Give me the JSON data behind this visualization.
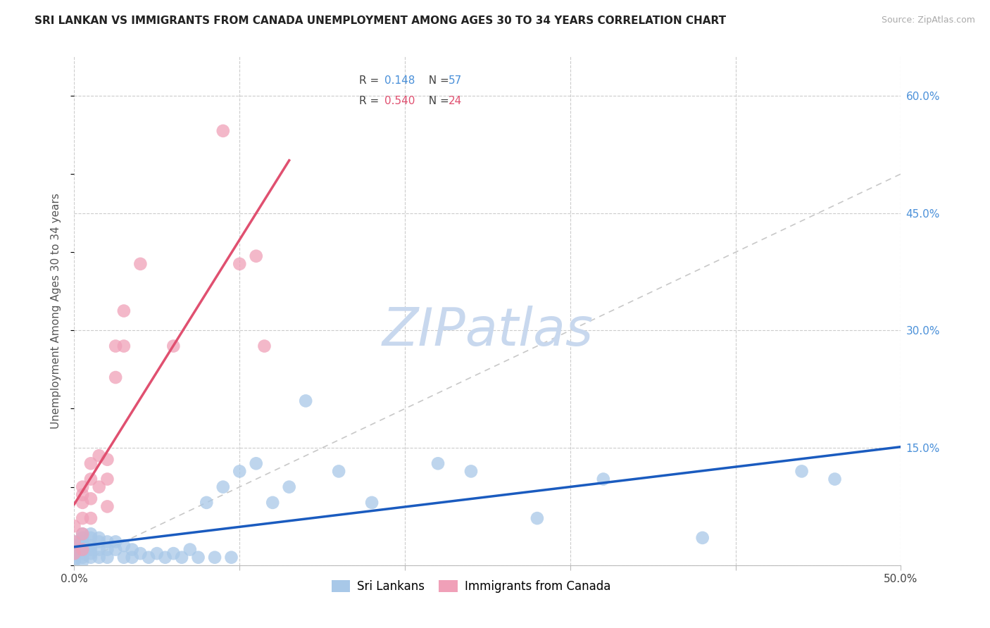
{
  "title": "SRI LANKAN VS IMMIGRANTS FROM CANADA UNEMPLOYMENT AMONG AGES 30 TO 34 YEARS CORRELATION CHART",
  "source": "Source: ZipAtlas.com",
  "ylabel": "Unemployment Among Ages 30 to 34 years",
  "xlim": [
    0.0,
    0.5
  ],
  "ylim": [
    0.0,
    0.65
  ],
  "xticks": [
    0.0,
    0.1,
    0.2,
    0.3,
    0.4,
    0.5
  ],
  "xticklabels": [
    "0.0%",
    "",
    "",
    "",
    "",
    "50.0%"
  ],
  "yticks": [
    0.0,
    0.15,
    0.3,
    0.45,
    0.6
  ],
  "yticklabels": [
    "",
    "15.0%",
    "30.0%",
    "45.0%",
    "60.0%"
  ],
  "blue_color": "#a8c8e8",
  "pink_color": "#f0a0b8",
  "blue_line_color": "#1a5bbf",
  "pink_line_color": "#e05070",
  "diag_line_color": "#c8c8c8",
  "watermark_color": "#c8d8ee",
  "sri_lankans_x": [
    0.0,
    0.0,
    0.0,
    0.0,
    0.0,
    0.0,
    0.005,
    0.005,
    0.005,
    0.005,
    0.005,
    0.005,
    0.005,
    0.005,
    0.01,
    0.01,
    0.01,
    0.01,
    0.01,
    0.01,
    0.015,
    0.015,
    0.015,
    0.015,
    0.02,
    0.02,
    0.02,
    0.025,
    0.025,
    0.03,
    0.03,
    0.035,
    0.035,
    0.04,
    0.045,
    0.05,
    0.055,
    0.06,
    0.065,
    0.07,
    0.075,
    0.08,
    0.085,
    0.09,
    0.095,
    0.1,
    0.11,
    0.12,
    0.13,
    0.14,
    0.16,
    0.18,
    0.22,
    0.24,
    0.28,
    0.32,
    0.38,
    0.44,
    0.46
  ],
  "sri_lankans_y": [
    0.03,
    0.025,
    0.02,
    0.015,
    0.01,
    0.005,
    0.04,
    0.035,
    0.03,
    0.025,
    0.02,
    0.015,
    0.01,
    0.005,
    0.04,
    0.035,
    0.025,
    0.02,
    0.015,
    0.01,
    0.035,
    0.03,
    0.02,
    0.01,
    0.03,
    0.02,
    0.01,
    0.03,
    0.02,
    0.025,
    0.01,
    0.02,
    0.01,
    0.015,
    0.01,
    0.015,
    0.01,
    0.015,
    0.01,
    0.02,
    0.01,
    0.08,
    0.01,
    0.1,
    0.01,
    0.12,
    0.13,
    0.08,
    0.1,
    0.21,
    0.12,
    0.08,
    0.13,
    0.12,
    0.06,
    0.11,
    0.035,
    0.12,
    0.11
  ],
  "immigrants_x": [
    0.0,
    0.0,
    0.0,
    0.005,
    0.005,
    0.005,
    0.005,
    0.005,
    0.005,
    0.01,
    0.01,
    0.01,
    0.01,
    0.015,
    0.015,
    0.02,
    0.02,
    0.02,
    0.025,
    0.025,
    0.03,
    0.03,
    0.04,
    0.06,
    0.09,
    0.1,
    0.11,
    0.115
  ],
  "immigrants_y": [
    0.05,
    0.03,
    0.015,
    0.1,
    0.09,
    0.08,
    0.06,
    0.04,
    0.02,
    0.13,
    0.11,
    0.085,
    0.06,
    0.14,
    0.1,
    0.135,
    0.11,
    0.075,
    0.28,
    0.24,
    0.325,
    0.28,
    0.385,
    0.28,
    0.555,
    0.385,
    0.395,
    0.28
  ]
}
